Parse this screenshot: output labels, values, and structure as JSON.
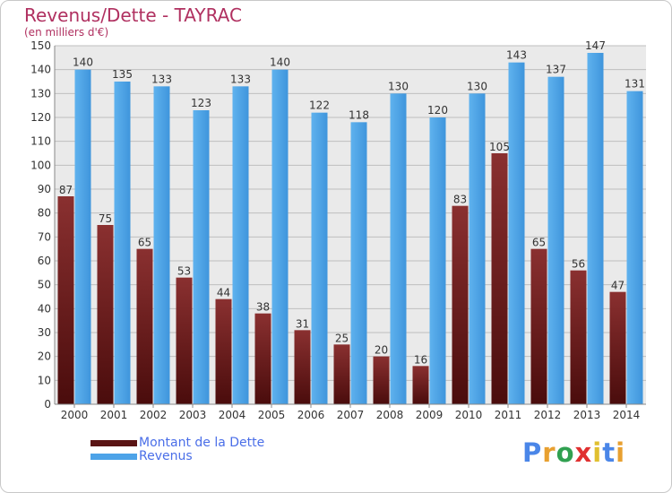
{
  "title": "Revenus/Dette - TAYRAC",
  "subtitle": "(en milliers d'€)",
  "logo": {
    "text": "Proxiti",
    "letter_colors": [
      "#4a86e8",
      "#e8a030",
      "#30a050",
      "#e03030",
      "#e0c030",
      "#4a86e8",
      "#e8a030"
    ]
  },
  "colors": {
    "dette": "#6e1e1e",
    "dette_light": "#8a3030",
    "revenus": "#4da3e8",
    "revenus_light": "#6cb8f0",
    "axis_text": "#333333",
    "grid": "#bfbfbf",
    "plot_background": "#eaeaea",
    "title": "#b03060",
    "legend_text": "#4a6ee8"
  },
  "chart_data": {
    "type": "bar",
    "title": "Revenus/Dette - TAYRAC",
    "subtitle": "(en milliers d'€)",
    "categories": [
      "2000",
      "2001",
      "2002",
      "2003",
      "2004",
      "2005",
      "2006",
      "2007",
      "2008",
      "2009",
      "2010",
      "2011",
      "2012",
      "2013",
      "2014"
    ],
    "series": [
      {
        "name": "Montant de la Dette",
        "values": [
          87,
          75,
          65,
          53,
          44,
          38,
          31,
          25,
          20,
          16,
          83,
          105,
          65,
          56,
          47
        ]
      },
      {
        "name": "Revenus",
        "values": [
          140,
          135,
          133,
          123,
          133,
          140,
          122,
          118,
          130,
          120,
          130,
          143,
          137,
          147,
          131
        ]
      }
    ],
    "ylim": [
      0,
      150
    ],
    "yticks": [
      0,
      10,
      20,
      30,
      40,
      50,
      60,
      70,
      80,
      90,
      100,
      110,
      120,
      130,
      140,
      150
    ],
    "grid": true,
    "legend_position": "bottom-left",
    "data_labels": true
  }
}
